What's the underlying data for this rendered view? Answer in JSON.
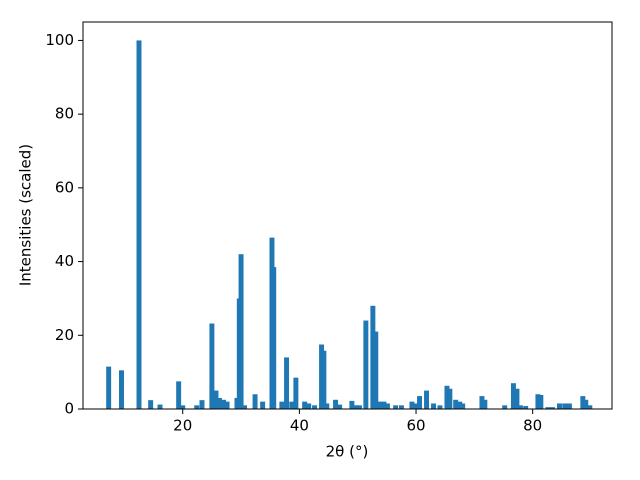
{
  "chart_data": {
    "type": "bar",
    "xlabel": "2θ (°)",
    "ylabel": "Intensities (scaled)",
    "color": "#1f77b4",
    "x": [
      7.3,
      9.5,
      12.5,
      14.5,
      16.1,
      19.3,
      20.0,
      22.4,
      23.3,
      25.0,
      25.7,
      26.3,
      27.0,
      27.6,
      29.3,
      29.7,
      30.0,
      30.6,
      32.4,
      33.7,
      35.3,
      35.6,
      37.0,
      37.8,
      38.7,
      39.4,
      40.9,
      41.6,
      42.6,
      43.8,
      44.2,
      44.7,
      46.2,
      46.9,
      49.0,
      49.7,
      50.3,
      51.4,
      52.6,
      53.1,
      53.8,
      54.5,
      55.1,
      56.5,
      57.5,
      59.3,
      59.9,
      60.6,
      61.8,
      63.0,
      64.1,
      65.3,
      65.8,
      66.8,
      67.5,
      68.0,
      71.3,
      71.8,
      75.2,
      76.7,
      77.3,
      77.9,
      78.8,
      80.9,
      81.4,
      82.6,
      83.4,
      84.6,
      85.5,
      86.3,
      88.6,
      89.1,
      89.8
    ],
    "values": [
      11.5,
      10.5,
      100,
      2.4,
      1.2,
      7.5,
      1,
      1,
      2.4,
      23.2,
      5,
      3,
      2.5,
      2,
      3,
      30,
      42,
      1,
      4,
      2,
      46.5,
      38.5,
      2,
      14,
      2,
      8.5,
      2,
      1.5,
      1,
      17.5,
      15.8,
      1.5,
      2.5,
      1.2,
      2.2,
      1,
      1,
      24,
      28,
      21,
      2,
      2,
      1.5,
      1,
      1,
      2,
      1.5,
      3.5,
      5,
      1.5,
      1,
      6.3,
      5.5,
      2.5,
      2,
      1.5,
      3.5,
      2.5,
      1,
      7,
      5.5,
      1,
      0.8,
      4,
      3.8,
      0.5,
      0.5,
      1.5,
      1.5,
      1.5,
      3.5,
      2.5,
      1
    ],
    "xlim": [
      2.9,
      93.6
    ],
    "ylim": [
      0,
      105
    ],
    "xticks": [
      20,
      40,
      60,
      80
    ],
    "yticks": [
      0,
      20,
      40,
      60,
      80,
      100
    ]
  }
}
